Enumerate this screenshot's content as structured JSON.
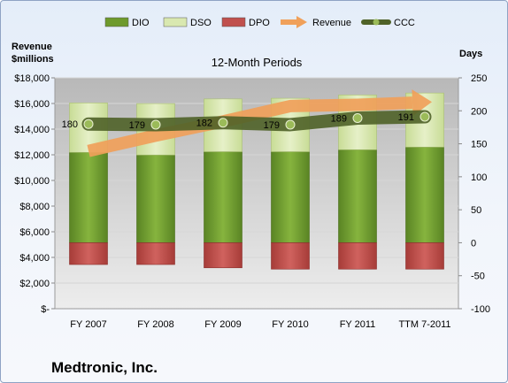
{
  "company_name": "Medtronic, Inc.",
  "chart_data": {
    "type": "bar",
    "title": "12-Month Periods",
    "ylabel_left": [
      "Revenue",
      "$millions"
    ],
    "ylabel_right": "Days",
    "categories": [
      "FY 2007",
      "FY 2008",
      "FY 2009",
      "FY 2010",
      "FY 2011",
      "TTM 7-2011"
    ],
    "ylim_left": [
      0,
      18000
    ],
    "ylim_right": [
      -100,
      250
    ],
    "left_ticks": [
      0,
      2000,
      4000,
      6000,
      8000,
      10000,
      12000,
      14000,
      16000,
      18000
    ],
    "left_tick_labels": [
      "$-",
      "$2,000",
      "$4,000",
      "$6,000",
      "$8,000",
      "$10,000",
      "$12,000",
      "$14,000",
      "$16,000",
      "$18,000"
    ],
    "right_ticks": [
      -100,
      -50,
      0,
      50,
      100,
      150,
      200,
      250
    ],
    "right_tick_labels": [
      "-100",
      "-50",
      "0",
      "50",
      "100",
      "150",
      "200",
      "250"
    ],
    "grid": true,
    "legend_position": "top",
    "series": [
      {
        "name": "DIO",
        "type": "stacked-bar",
        "axis": "right",
        "color": "#6e9a2c",
        "values": [
          137,
          133,
          138,
          138,
          141,
          145
        ]
      },
      {
        "name": "DSO",
        "type": "stacked-bar",
        "axis": "right",
        "color": "#d9e8b0",
        "values": [
          75,
          78,
          80,
          81,
          83,
          82
        ]
      },
      {
        "name": "DPO",
        "type": "bar",
        "axis": "right",
        "color": "#c0504d",
        "values": [
          -33,
          -33,
          -38,
          -40,
          -40,
          -40
        ]
      },
      {
        "name": "Revenue",
        "type": "line",
        "axis": "left",
        "color": "#f0a05a",
        "values": [
          12300,
          13500,
          14600,
          15800,
          15900,
          16100
        ]
      },
      {
        "name": "CCC",
        "type": "line",
        "axis": "right",
        "color": "#4f6228",
        "values": [
          180,
          179,
          182,
          179,
          189,
          191
        ]
      }
    ],
    "data_labels": [
      "180",
      "179",
      "182",
      "179",
      "189",
      "191"
    ]
  }
}
